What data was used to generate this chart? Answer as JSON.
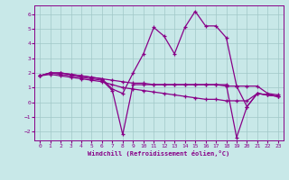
{
  "bg_color": "#c8e8e8",
  "grid_color": "#a0c8c8",
  "line_color": "#880088",
  "xlabel": "Windchill (Refroidissement éolien,°C)",
  "xlim": [
    -0.5,
    23.5
  ],
  "ylim": [
    -2.6,
    6.6
  ],
  "yticks": [
    -2,
    -1,
    0,
    1,
    2,
    3,
    4,
    5,
    6
  ],
  "xticks": [
    0,
    1,
    2,
    3,
    4,
    5,
    6,
    7,
    8,
    9,
    10,
    11,
    12,
    13,
    14,
    15,
    16,
    17,
    18,
    19,
    20,
    21,
    22,
    23
  ],
  "series": [
    {
      "x": [
        0,
        1,
        2,
        3,
        4,
        5,
        6,
        7,
        8,
        9,
        10,
        11,
        12,
        13,
        14,
        15,
        16,
        17,
        18,
        19,
        20,
        21,
        22,
        23
      ],
      "y": [
        1.8,
        2.0,
        2.0,
        1.9,
        1.8,
        1.7,
        1.6,
        1.5,
        1.4,
        1.3,
        1.3,
        1.2,
        1.2,
        1.2,
        1.2,
        1.2,
        1.2,
        1.2,
        1.1,
        1.1,
        1.1,
        1.1,
        0.6,
        0.5
      ]
    },
    {
      "x": [
        0,
        1,
        2,
        3,
        4,
        5,
        6,
        7,
        8,
        9,
        10,
        11,
        12,
        13,
        14,
        15,
        16,
        17,
        18,
        19,
        20,
        21,
        22,
        23
      ],
      "y": [
        1.8,
        2.0,
        2.0,
        1.9,
        1.8,
        1.7,
        1.6,
        0.9,
        0.6,
        2.0,
        3.3,
        5.1,
        4.5,
        3.3,
        5.1,
        6.2,
        5.2,
        5.2,
        4.4,
        1.1,
        -0.3,
        0.6,
        0.5,
        0.4
      ]
    },
    {
      "x": [
        0,
        1,
        2,
        3,
        4,
        5,
        6,
        7,
        8,
        9,
        10,
        11,
        12,
        13,
        14,
        15,
        16,
        17,
        18,
        19,
        20,
        21,
        22,
        23
      ],
      "y": [
        1.8,
        2.0,
        1.9,
        1.8,
        1.7,
        1.6,
        1.5,
        0.8,
        -2.2,
        1.2,
        1.2,
        1.2,
        1.2,
        1.2,
        1.2,
        1.2,
        1.2,
        1.2,
        1.2,
        -2.4,
        -0.3,
        0.6,
        0.5,
        0.4
      ]
    },
    {
      "x": [
        0,
        1,
        2,
        3,
        4,
        5,
        6,
        7,
        8,
        9,
        10,
        11,
        12,
        13,
        14,
        15,
        16,
        17,
        18,
        19,
        20,
        21,
        22,
        23
      ],
      "y": [
        1.8,
        1.9,
        1.8,
        1.7,
        1.6,
        1.5,
        1.4,
        1.2,
        1.0,
        0.9,
        0.8,
        0.7,
        0.6,
        0.5,
        0.4,
        0.3,
        0.2,
        0.2,
        0.1,
        0.1,
        0.1,
        0.6,
        0.5,
        0.4
      ]
    }
  ]
}
